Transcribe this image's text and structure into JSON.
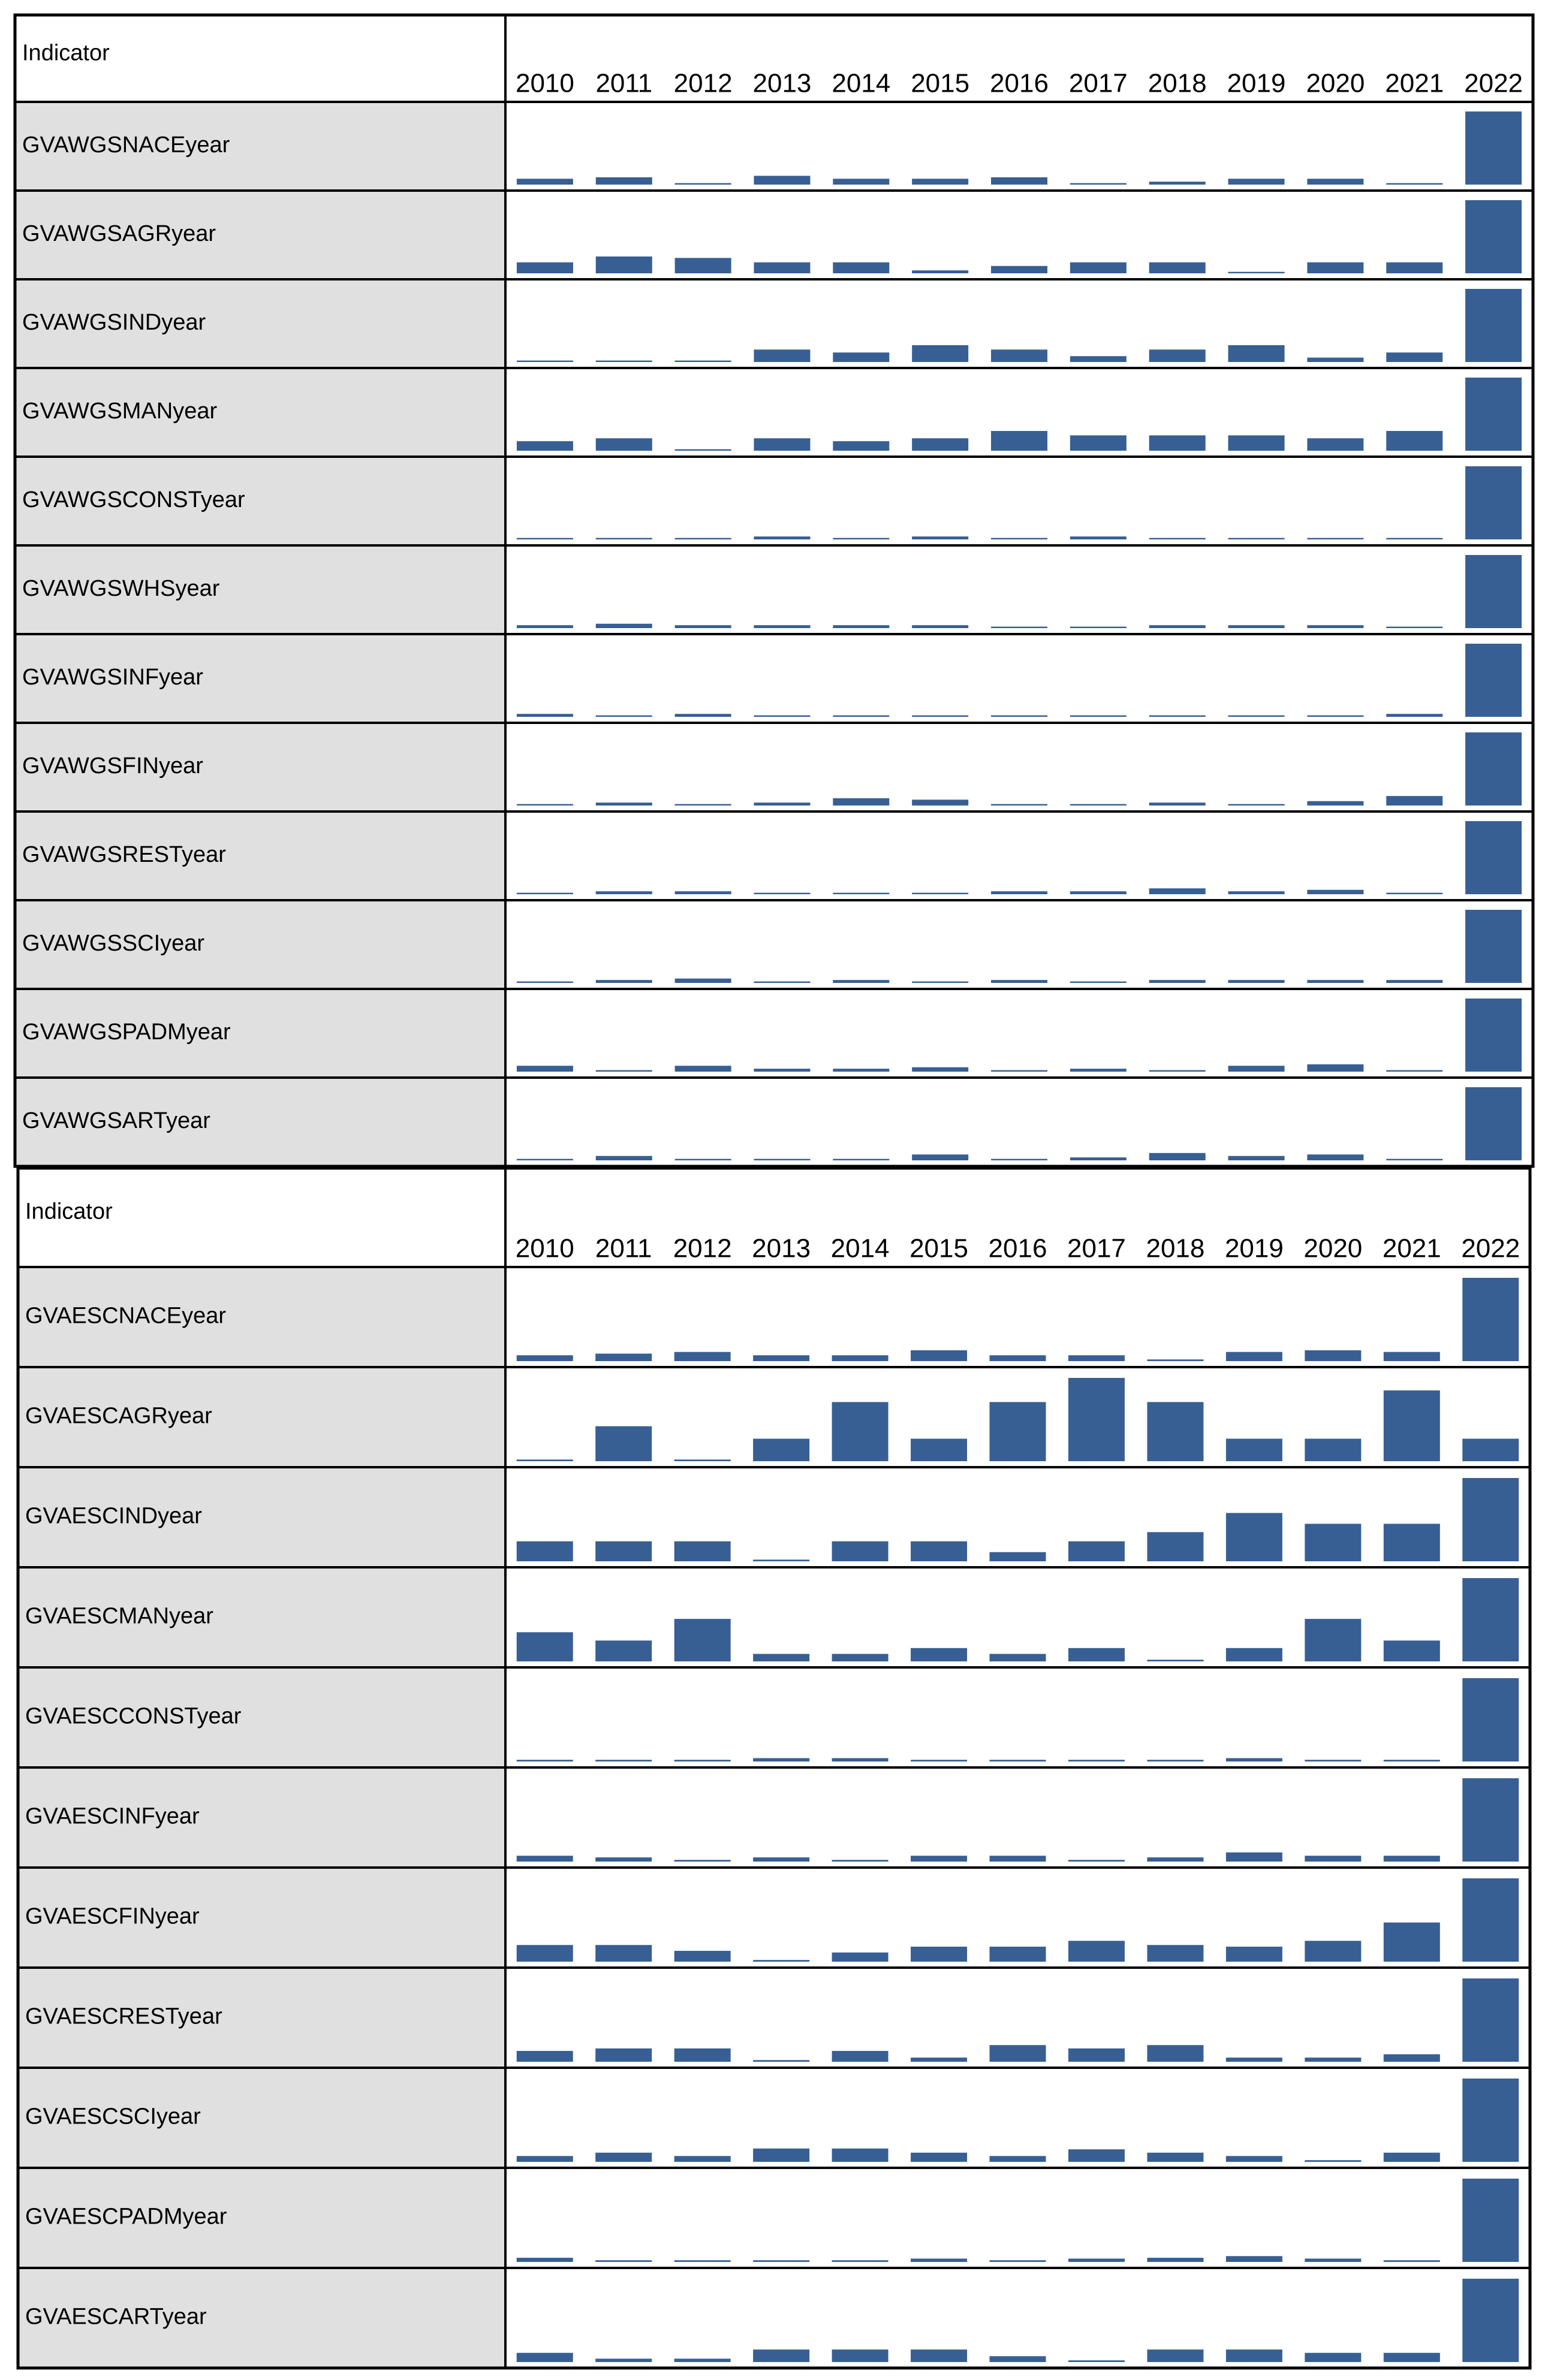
{
  "tables": [
    {
      "header": {
        "label": "Indicator",
        "years": [
          "2010",
          "2011",
          "2012",
          "2013",
          "2014",
          "2015",
          "2016",
          "2017",
          "2018",
          "2019",
          "2020",
          "2021",
          "2022"
        ]
      },
      "rows": [
        {
          "name": "GVAWGSNACEyear",
          "values": [
            8,
            10,
            2,
            12,
            8,
            8,
            10,
            2,
            4,
            8,
            8,
            2,
            100
          ]
        },
        {
          "name": "GVAWGSAGRyear",
          "values": [
            15,
            23,
            21,
            15,
            15,
            4,
            10,
            15,
            15,
            2,
            15,
            15,
            100
          ]
        },
        {
          "name": "GVAWGSINDyear",
          "values": [
            2,
            2,
            2,
            17,
            13,
            23,
            17,
            8,
            17,
            23,
            6,
            13,
            100
          ]
        },
        {
          "name": "GVAWGSMANyear",
          "values": [
            13,
            17,
            2,
            17,
            13,
            17,
            27,
            21,
            21,
            21,
            17,
            27,
            100
          ]
        },
        {
          "name": "GVAWGSCONSTyear",
          "values": [
            2,
            2,
            2,
            4,
            2,
            4,
            2,
            4,
            2,
            2,
            2,
            2,
            100
          ]
        },
        {
          "name": "GVAWGSWHSyear",
          "values": [
            4,
            6,
            4,
            4,
            4,
            4,
            2,
            2,
            4,
            4,
            4,
            2,
            100
          ]
        },
        {
          "name": "GVAWGSINFyear",
          "values": [
            4,
            2,
            4,
            2,
            2,
            2,
            2,
            2,
            2,
            2,
            2,
            4,
            100
          ]
        },
        {
          "name": "GVAWGSFINyear",
          "values": [
            2,
            4,
            2,
            4,
            10,
            8,
            2,
            2,
            4,
            2,
            6,
            13,
            100
          ]
        },
        {
          "name": "GVAWGSRESTyear",
          "values": [
            2,
            4,
            4,
            2,
            2,
            2,
            4,
            4,
            8,
            4,
            6,
            2,
            100
          ]
        },
        {
          "name": "GVAWGSSCIyear",
          "values": [
            2,
            4,
            6,
            2,
            4,
            2,
            4,
            2,
            4,
            4,
            4,
            4,
            100
          ]
        },
        {
          "name": "GVAWGSPADMyear",
          "values": [
            8,
            2,
            8,
            4,
            4,
            6,
            2,
            4,
            2,
            8,
            10,
            2,
            100
          ]
        },
        {
          "name": "GVAWGSARTyear",
          "values": [
            2,
            6,
            2,
            2,
            2,
            8,
            2,
            4,
            10,
            6,
            8,
            2,
            100
          ]
        }
      ]
    },
    {
      "header": {
        "label": "Indicator",
        "years": [
          "2010",
          "2011",
          "2012",
          "2013",
          "2014",
          "2015",
          "2016",
          "2017",
          "2018",
          "2019",
          "2020",
          "2021",
          "2022"
        ]
      },
      "rows": [
        {
          "name": "GVAESCNACEyear",
          "values": [
            7,
            9,
            11,
            7,
            7,
            13,
            7,
            7,
            2,
            11,
            13,
            11,
            100
          ]
        },
        {
          "name": "GVAESCAGRyear",
          "values": [
            2,
            42,
            2,
            27,
            71,
            27,
            71,
            100,
            71,
            27,
            27,
            85,
            27
          ]
        },
        {
          "name": "GVAESCINDyear",
          "values": [
            24,
            24,
            24,
            2,
            24,
            24,
            11,
            24,
            35,
            58,
            45,
            45,
            100
          ]
        },
        {
          "name": "GVAESCMANyear",
          "values": [
            35,
            25,
            51,
            9,
            9,
            16,
            9,
            16,
            2,
            16,
            51,
            25,
            100
          ]
        },
        {
          "name": "GVAESCCONSTyear",
          "values": [
            2,
            2,
            2,
            4,
            4,
            2,
            2,
            2,
            2,
            4,
            2,
            2,
            100
          ]
        },
        {
          "name": "GVAESCINFyear",
          "values": [
            7,
            5,
            2,
            5,
            2,
            7,
            7,
            2,
            5,
            11,
            7,
            7,
            100
          ]
        },
        {
          "name": "GVAESCFINyear",
          "values": [
            20,
            20,
            13,
            2,
            11,
            18,
            18,
            25,
            20,
            18,
            25,
            47,
            100
          ]
        },
        {
          "name": "GVAESCRESTyear",
          "values": [
            13,
            16,
            16,
            2,
            13,
            5,
            20,
            16,
            20,
            5,
            5,
            9,
            100
          ]
        },
        {
          "name": "GVAESCSCIyear",
          "values": [
            7,
            11,
            7,
            16,
            16,
            11,
            7,
            15,
            11,
            7,
            2,
            11,
            100
          ]
        },
        {
          "name": "GVAESCPADMyear",
          "values": [
            5,
            2,
            2,
            2,
            2,
            4,
            2,
            4,
            5,
            7,
            4,
            2,
            100
          ]
        },
        {
          "name": "GVAESCARTyear",
          "values": [
            11,
            4,
            4,
            15,
            15,
            15,
            7,
            2,
            15,
            15,
            11,
            11,
            100
          ]
        }
      ]
    }
  ]
}
